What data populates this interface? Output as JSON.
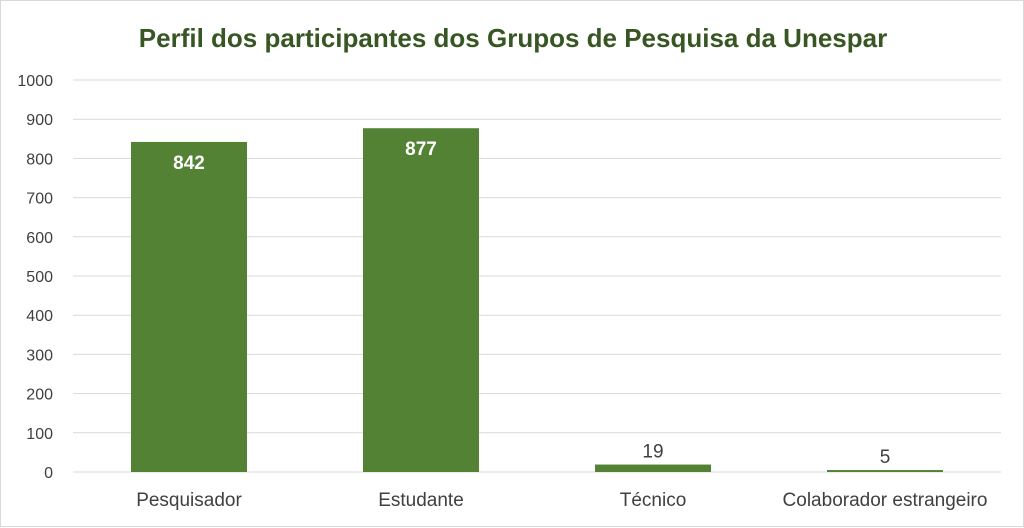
{
  "chart_data": {
    "type": "bar",
    "title": "Perfil dos participantes dos Grupos de Pesquisa da Unespar",
    "xlabel": "",
    "ylabel": "",
    "categories": [
      "Pesquisador",
      "Estudante",
      "Técnico",
      "Colaborador estrangeiro"
    ],
    "values": [
      842,
      877,
      19,
      5
    ],
    "data_labels": [
      "842",
      "877",
      "19",
      "5"
    ],
    "ylim": [
      0,
      1000
    ],
    "yticks": [
      0,
      100,
      200,
      300,
      400,
      500,
      600,
      700,
      800,
      900,
      1000
    ],
    "ytick_labels": [
      "0",
      "100",
      "200",
      "300",
      "400",
      "500",
      "600",
      "700",
      "800",
      "900",
      "1000"
    ],
    "grid": true,
    "legend": "none",
    "colors": {
      "bar": "#548235",
      "title": "#375623",
      "grid": "#d9d9d9",
      "text": "#404040"
    }
  }
}
